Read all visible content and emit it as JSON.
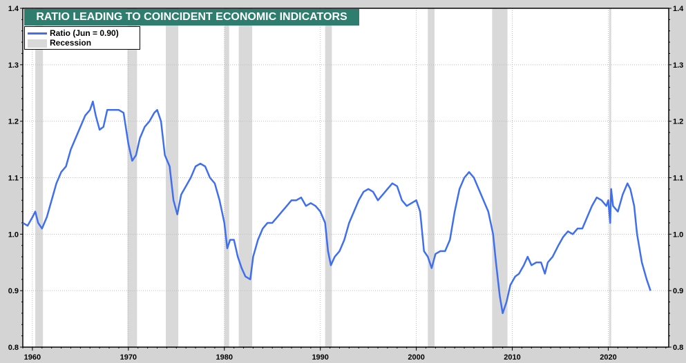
{
  "chart_data": {
    "type": "line",
    "title": "RATIO LEADING TO COINCIDENT ECONOMIC INDICATORS",
    "legend": [
      {
        "label": "Ratio  (Jun = 0.90)",
        "color": "#3f6ff0"
      },
      {
        "label": "Recession",
        "color": "#d9d9d9"
      }
    ],
    "legend_placement": "top-left",
    "xlim": [
      1959,
      2026.3
    ],
    "ylim": [
      0.8,
      1.4
    ],
    "x_ticks": [
      "1960",
      "1970",
      "1980",
      "1990",
      "2000",
      "2010",
      "2020"
    ],
    "y_ticks": [
      "0.8",
      "0.9",
      "1.0",
      "1.1",
      "1.2",
      "1.3",
      "1.4"
    ],
    "grid": true,
    "recessions": [
      [
        1960.3,
        1961.1
      ],
      [
        1969.9,
        1970.9
      ],
      [
        1973.9,
        1975.2
      ],
      [
        1980.0,
        1980.5
      ],
      [
        1981.5,
        1982.9
      ],
      [
        1990.5,
        1991.2
      ],
      [
        2001.2,
        2001.9
      ],
      [
        2007.9,
        2009.5
      ],
      [
        2020.1,
        2020.3
      ]
    ],
    "series": [
      {
        "name": "Ratio",
        "points": [
          [
            1959,
            1.02
          ],
          [
            1959.5,
            1.015
          ],
          [
            1960,
            1.03
          ],
          [
            1960.3,
            1.04
          ],
          [
            1960.6,
            1.02
          ],
          [
            1961,
            1.01
          ],
          [
            1961.5,
            1.03
          ],
          [
            1962,
            1.06
          ],
          [
            1962.5,
            1.09
          ],
          [
            1963,
            1.11
          ],
          [
            1963.5,
            1.12
          ],
          [
            1964,
            1.15
          ],
          [
            1964.5,
            1.17
          ],
          [
            1965,
            1.19
          ],
          [
            1965.5,
            1.21
          ],
          [
            1966,
            1.22
          ],
          [
            1966.3,
            1.235
          ],
          [
            1966.6,
            1.21
          ],
          [
            1967,
            1.185
          ],
          [
            1967.4,
            1.19
          ],
          [
            1967.8,
            1.22
          ],
          [
            1968.5,
            1.22
          ],
          [
            1969,
            1.22
          ],
          [
            1969.5,
            1.215
          ],
          [
            1970,
            1.16
          ],
          [
            1970.4,
            1.13
          ],
          [
            1970.8,
            1.14
          ],
          [
            1971.2,
            1.17
          ],
          [
            1971.7,
            1.19
          ],
          [
            1972.2,
            1.2
          ],
          [
            1972.7,
            1.215
          ],
          [
            1973,
            1.22
          ],
          [
            1973.4,
            1.2
          ],
          [
            1973.8,
            1.14
          ],
          [
            1974.3,
            1.12
          ],
          [
            1974.7,
            1.06
          ],
          [
            1975.1,
            1.035
          ],
          [
            1975.5,
            1.07
          ],
          [
            1976,
            1.085
          ],
          [
            1976.5,
            1.1
          ],
          [
            1977,
            1.12
          ],
          [
            1977.5,
            1.125
          ],
          [
            1978,
            1.12
          ],
          [
            1978.5,
            1.1
          ],
          [
            1979,
            1.09
          ],
          [
            1979.5,
            1.06
          ],
          [
            1980,
            1.02
          ],
          [
            1980.3,
            0.975
          ],
          [
            1980.6,
            0.99
          ],
          [
            1981,
            0.99
          ],
          [
            1981.4,
            0.96
          ],
          [
            1981.8,
            0.94
          ],
          [
            1982.2,
            0.925
          ],
          [
            1982.7,
            0.92
          ],
          [
            1983,
            0.96
          ],
          [
            1983.5,
            0.99
          ],
          [
            1984,
            1.01
          ],
          [
            1984.5,
            1.02
          ],
          [
            1985,
            1.02
          ],
          [
            1985.5,
            1.03
          ],
          [
            1986,
            1.04
          ],
          [
            1986.5,
            1.05
          ],
          [
            1987,
            1.06
          ],
          [
            1987.5,
            1.06
          ],
          [
            1988,
            1.065
          ],
          [
            1988.5,
            1.05
          ],
          [
            1989,
            1.055
          ],
          [
            1989.5,
            1.05
          ],
          [
            1990,
            1.04
          ],
          [
            1990.5,
            1.02
          ],
          [
            1990.8,
            0.97
          ],
          [
            1991.1,
            0.945
          ],
          [
            1991.5,
            0.96
          ],
          [
            1992,
            0.97
          ],
          [
            1992.5,
            0.99
          ],
          [
            1993,
            1.02
          ],
          [
            1993.5,
            1.04
          ],
          [
            1994,
            1.06
          ],
          [
            1994.5,
            1.075
          ],
          [
            1995,
            1.08
          ],
          [
            1995.5,
            1.075
          ],
          [
            1996,
            1.06
          ],
          [
            1996.5,
            1.07
          ],
          [
            1997,
            1.08
          ],
          [
            1997.5,
            1.09
          ],
          [
            1998,
            1.085
          ],
          [
            1998.5,
            1.06
          ],
          [
            1999,
            1.05
          ],
          [
            1999.5,
            1.055
          ],
          [
            2000,
            1.06
          ],
          [
            2000.4,
            1.04
          ],
          [
            2000.8,
            0.97
          ],
          [
            2001.2,
            0.96
          ],
          [
            2001.6,
            0.94
          ],
          [
            2002,
            0.965
          ],
          [
            2002.5,
            0.97
          ],
          [
            2003,
            0.97
          ],
          [
            2003.5,
            0.99
          ],
          [
            2004,
            1.04
          ],
          [
            2004.5,
            1.08
          ],
          [
            2005,
            1.1
          ],
          [
            2005.5,
            1.11
          ],
          [
            2006,
            1.1
          ],
          [
            2006.5,
            1.08
          ],
          [
            2007,
            1.06
          ],
          [
            2007.5,
            1.04
          ],
          [
            2008,
            1.0
          ],
          [
            2008.3,
            0.95
          ],
          [
            2008.7,
            0.89
          ],
          [
            2009,
            0.86
          ],
          [
            2009.4,
            0.88
          ],
          [
            2009.8,
            0.91
          ],
          [
            2010.3,
            0.925
          ],
          [
            2010.7,
            0.93
          ],
          [
            2011.2,
            0.945
          ],
          [
            2011.6,
            0.96
          ],
          [
            2012,
            0.945
          ],
          [
            2012.5,
            0.95
          ],
          [
            2013,
            0.95
          ],
          [
            2013.4,
            0.93
          ],
          [
            2013.7,
            0.95
          ],
          [
            2014.2,
            0.96
          ],
          [
            2014.8,
            0.98
          ],
          [
            2015.3,
            0.995
          ],
          [
            2015.8,
            1.005
          ],
          [
            2016.3,
            1.0
          ],
          [
            2016.8,
            1.01
          ],
          [
            2017.3,
            1.01
          ],
          [
            2017.8,
            1.03
          ],
          [
            2018.3,
            1.05
          ],
          [
            2018.8,
            1.065
          ],
          [
            2019.3,
            1.06
          ],
          [
            2019.8,
            1.05
          ],
          [
            2020,
            1.06
          ],
          [
            2020.2,
            1.02
          ],
          [
            2020.3,
            1.08
          ],
          [
            2020.5,
            1.05
          ],
          [
            2021,
            1.04
          ],
          [
            2021.5,
            1.07
          ],
          [
            2022,
            1.09
          ],
          [
            2022.3,
            1.08
          ],
          [
            2022.7,
            1.05
          ],
          [
            2023,
            1.0
          ],
          [
            2023.5,
            0.95
          ],
          [
            2024,
            0.92
          ],
          [
            2024.4,
            0.9
          ]
        ]
      }
    ]
  }
}
